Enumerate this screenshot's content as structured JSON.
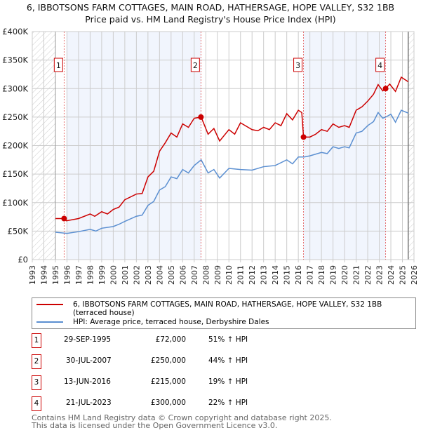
{
  "chart_data": {
    "type": "line",
    "title": "6, IBBOTSONS FARM COTTAGES, MAIN ROAD, HATHERSAGE, HOPE VALLEY, S32 1BB",
    "subtitle": "Price paid vs. HM Land Registry's House Price Index (HPI)",
    "xlim": [
      1993,
      2026
    ],
    "ylim": [
      0,
      400000
    ],
    "x_ticks": [
      "1993",
      "1994",
      "1995",
      "1996",
      "1997",
      "1998",
      "1999",
      "2000",
      "2001",
      "2002",
      "2003",
      "2004",
      "2005",
      "2006",
      "2007",
      "2008",
      "2009",
      "2010",
      "2011",
      "2012",
      "2013",
      "2014",
      "2015",
      "2016",
      "2017",
      "2018",
      "2019",
      "2020",
      "2021",
      "2022",
      "2023",
      "2024",
      "2025",
      "2026"
    ],
    "y_ticks": [
      {
        "v": 0,
        "label": "£0"
      },
      {
        "v": 50000,
        "label": "£50K"
      },
      {
        "v": 100000,
        "label": "£100K"
      },
      {
        "v": 150000,
        "label": "£150K"
      },
      {
        "v": 200000,
        "label": "£200K"
      },
      {
        "v": 250000,
        "label": "£250K"
      },
      {
        "v": 300000,
        "label": "£300K"
      },
      {
        "v": 350000,
        "label": "£350K"
      },
      {
        "v": 400000,
        "label": "£400K"
      }
    ],
    "grid": true,
    "series": [
      {
        "name": "6, IBBOTSONS FARM COTTAGES, MAIN ROAD, HATHERSAGE, HOPE VALLEY, S32 1BB (terraced house)",
        "color": "#cc0000",
        "x": [
          1995,
          1995.75,
          1995.95,
          1997,
          1998,
          1998.4,
          1999,
          1999.5,
          2000,
          2000.5,
          2001,
          2002,
          2002.5,
          2003,
          2003.5,
          2004,
          2004.5,
          2005,
          2005.5,
          2006,
          2006.5,
          2007,
          2007.6,
          2008.2,
          2008.7,
          2009.2,
          2010,
          2010.5,
          2011,
          2012,
          2012.5,
          2013,
          2013.5,
          2014,
          2014.5,
          2015,
          2015.5,
          2016,
          2016.3,
          2016.45,
          2017,
          2017.5,
          2018,
          2018.5,
          2019,
          2019.5,
          2020,
          2020.4,
          2021,
          2021.5,
          2022,
          2022.5,
          2022.9,
          2023.3,
          2023.55,
          2023.9,
          2024.4,
          2024.9,
          2025.5
        ],
        "values": [
          72000,
          72000,
          68000,
          72000,
          80000,
          76000,
          84000,
          80000,
          88000,
          92000,
          105000,
          115000,
          116000,
          145000,
          155000,
          190000,
          205000,
          222000,
          215000,
          238000,
          232000,
          248000,
          250000,
          220000,
          230000,
          208000,
          228000,
          220000,
          240000,
          228000,
          226000,
          232000,
          228000,
          240000,
          235000,
          256000,
          245000,
          262000,
          258000,
          215000,
          215000,
          220000,
          228000,
          225000,
          238000,
          232000,
          235000,
          232000,
          262000,
          268000,
          278000,
          290000,
          307000,
          296000,
          300000,
          308000,
          295000,
          320000,
          312000
        ]
      },
      {
        "name": "HPI: Average price, terraced house, Derbyshire Dales",
        "color": "#5b8fd1",
        "x": [
          1995,
          1996,
          1997,
          1998,
          1998.5,
          1999,
          2000,
          2000.5,
          2001,
          2002,
          2002.5,
          2003,
          2003.5,
          2004,
          2004.5,
          2005,
          2005.5,
          2006,
          2006.5,
          2007,
          2007.6,
          2008.2,
          2008.7,
          2009.2,
          2010,
          2011,
          2012,
          2013,
          2014,
          2015,
          2015.5,
          2016,
          2016.5,
          2017,
          2018,
          2018.5,
          2019,
          2019.5,
          2020,
          2020.4,
          2021,
          2021.5,
          2022,
          2022.5,
          2022.9,
          2023.3,
          2023.55,
          2024,
          2024.4,
          2024.9,
          2025.5
        ],
        "values": [
          48000,
          46000,
          49000,
          53000,
          50000,
          55000,
          58000,
          62000,
          67000,
          76000,
          78000,
          95000,
          102000,
          122000,
          128000,
          145000,
          142000,
          158000,
          152000,
          165000,
          175000,
          152000,
          158000,
          143000,
          160000,
          158000,
          157000,
          163000,
          165000,
          175000,
          168000,
          180000,
          180000,
          182000,
          188000,
          186000,
          198000,
          195000,
          198000,
          196000,
          222000,
          225000,
          235000,
          242000,
          258000,
          248000,
          250000,
          255000,
          241000,
          262000,
          257000
        ]
      }
    ],
    "sales": [
      {
        "num": "1",
        "x": 1995.75,
        "date": "29-SEP-1995",
        "price": "£72,000",
        "value": 72000,
        "hpi": "51% ↑ HPI"
      },
      {
        "num": "2",
        "x": 2007.58,
        "date": "30-JUL-2007",
        "price": "£250,000",
        "value": 250000,
        "hpi": "44% ↑ HPI"
      },
      {
        "num": "3",
        "x": 2016.45,
        "date": "13-JUN-2016",
        "price": "£215,000",
        "value": 215000,
        "hpi": "19% ↑ HPI"
      },
      {
        "num": "4",
        "x": 2023.55,
        "date": "21-JUL-2023",
        "price": "£300,000",
        "value": 300000,
        "hpi": "22% ↑ HPI"
      }
    ],
    "shaded_ranges": [
      [
        1995.95,
        2007.58
      ],
      [
        2016.45,
        2023.55
      ]
    ],
    "hatched_ranges": [
      [
        1993,
        1995
      ],
      [
        2025.5,
        2026
      ]
    ]
  },
  "legend": {
    "property": "6, IBBOTSONS FARM COTTAGES, MAIN ROAD, HATHERSAGE, HOPE VALLEY, S32 1BB (terraced house)",
    "hpi": "HPI: Average price, terraced house, Derbyshire Dales"
  },
  "footer": {
    "line1": "Contains HM Land Registry data © Crown copyright and database right 2025.",
    "line2": "This data is licensed under the Open Government Licence v3.0."
  }
}
